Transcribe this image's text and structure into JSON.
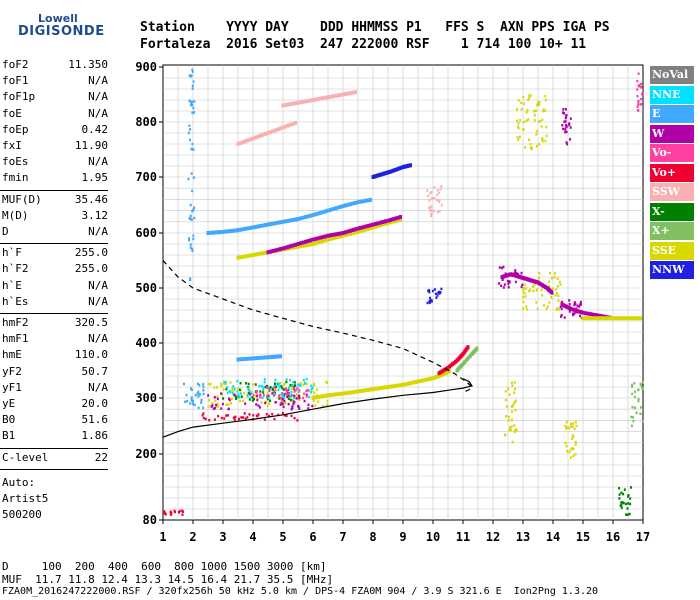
{
  "logo": {
    "line1": "Lowell",
    "line2": "DIGISONDE"
  },
  "header": {
    "row1": "Station    YYYY DAY    DDD HHMMSS P1   FFS S  AXN PPS IGA PS",
    "row2": "Fortaleza  2016 Set03  247 222000 RSF    1 714 100 10+ 11"
  },
  "params": {
    "group1": [
      {
        "label": "foF2",
        "value": "11.350"
      },
      {
        "label": "foF1",
        "value": "N/A"
      },
      {
        "label": "foF1p",
        "value": "N/A"
      },
      {
        "label": "foE",
        "value": "N/A"
      },
      {
        "label": "foEp",
        "value": "0.42"
      },
      {
        "label": "fxI",
        "value": "11.90"
      },
      {
        "label": "foEs",
        "value": "N/A"
      },
      {
        "label": "fmin",
        "value": "1.95"
      }
    ],
    "group2": [
      {
        "label": "MUF(D)",
        "value": "35.46"
      },
      {
        "label": "M(D)",
        "value": "3.12"
      },
      {
        "label": "D",
        "value": "N/A"
      }
    ],
    "group3": [
      {
        "label": "h`F",
        "value": "255.0"
      },
      {
        "label": "h`F2",
        "value": "255.0"
      },
      {
        "label": "h`E",
        "value": "N/A"
      },
      {
        "label": "h`Es",
        "value": "N/A"
      }
    ],
    "group4": [
      {
        "label": "hmF2",
        "value": "320.5"
      },
      {
        "label": "hmF1",
        "value": "N/A"
      },
      {
        "label": "hmE",
        "value": "110.0"
      },
      {
        "label": "yF2",
        "value": "50.7"
      },
      {
        "label": "yF1",
        "value": "N/A"
      },
      {
        "label": "yE",
        "value": "20.0"
      },
      {
        "label": "B0",
        "value": "51.6"
      },
      {
        "label": "B1",
        "value": "1.86"
      }
    ],
    "clevel": {
      "label": "C-level",
      "value": "22"
    },
    "auto": [
      "Auto:",
      "Artist5",
      "500200"
    ]
  },
  "legend": [
    {
      "label": "NoVal",
      "color": "#808080"
    },
    {
      "label": "NNE",
      "color": "#00e0ff"
    },
    {
      "label": "E",
      "color": "#40a8ff"
    },
    {
      "label": "W",
      "color": "#b000a8"
    },
    {
      "label": "Vo-",
      "color": "#ff40a0"
    },
    {
      "label": "Vo+",
      "color": "#f00030"
    },
    {
      "label": "SSW",
      "color": "#f8b0b0"
    },
    {
      "label": "X-",
      "color": "#008000"
    },
    {
      "label": "X+",
      "color": "#80c060"
    },
    {
      "label": "SSE",
      "color": "#d8d800"
    },
    {
      "label": "NNW",
      "color": "#2020e0"
    }
  ],
  "chart_data": {
    "type": "scatter",
    "xlim": [
      1,
      17
    ],
    "ylim": [
      80,
      900
    ],
    "xticks": [
      "1",
      "2",
      "3",
      "4",
      "5",
      "6",
      "7",
      "8",
      "9",
      "10",
      "11",
      "12",
      "13",
      "14",
      "15",
      "16",
      "17"
    ],
    "yticks": [
      {
        "v": 80,
        "label": "80"
      },
      {
        "v": 200,
        "label": "200"
      },
      {
        "v": 300,
        "label": "300"
      },
      {
        "v": 400,
        "label": "400"
      },
      {
        "v": 500,
        "label": "500"
      },
      {
        "v": 600,
        "label": "600"
      },
      {
        "v": 700,
        "label": "700"
      },
      {
        "v": 800,
        "label": "800"
      },
      {
        "v": 900,
        "label": "900"
      }
    ],
    "grid": true,
    "profile_dashed": [
      [
        1,
        550
      ],
      [
        1.5,
        520
      ],
      [
        2,
        500
      ],
      [
        3,
        480
      ],
      [
        4,
        460
      ],
      [
        5,
        445
      ],
      [
        6,
        430
      ],
      [
        7,
        418
      ],
      [
        8,
        405
      ],
      [
        9,
        390
      ],
      [
        10,
        365
      ],
      [
        10.7,
        345
      ],
      [
        11.1,
        330
      ],
      [
        11.3,
        320
      ],
      [
        11.2,
        315
      ],
      [
        11.0,
        310
      ]
    ],
    "trace_solid": [
      [
        1,
        230
      ],
      [
        1.5,
        240
      ],
      [
        2,
        248
      ],
      [
        3,
        255
      ],
      [
        4,
        262
      ],
      [
        5,
        270
      ],
      [
        6,
        280
      ],
      [
        7,
        290
      ],
      [
        8,
        298
      ],
      [
        9,
        305
      ],
      [
        10,
        310
      ],
      [
        10.6,
        315
      ],
      [
        11.0,
        318
      ],
      [
        11.3,
        322
      ],
      [
        11.2,
        330
      ],
      [
        11.0,
        335
      ]
    ],
    "traces": [
      {
        "color": "#d8d800",
        "points": [
          [
            6,
            300
          ],
          [
            6.5,
            305
          ],
          [
            7,
            308
          ],
          [
            7.5,
            312
          ],
          [
            8,
            316
          ],
          [
            8.5,
            320
          ],
          [
            9,
            324
          ],
          [
            9.5,
            330
          ],
          [
            10,
            336
          ],
          [
            10.3,
            342
          ],
          [
            10.6,
            350
          ]
        ]
      },
      {
        "color": "#f00030",
        "points": [
          [
            10.2,
            345
          ],
          [
            10.5,
            355
          ],
          [
            10.8,
            368
          ],
          [
            11,
            380
          ],
          [
            11.2,
            395
          ]
        ]
      },
      {
        "color": "#80c060",
        "points": [
          [
            10.8,
            350
          ],
          [
            11,
            362
          ],
          [
            11.3,
            380
          ],
          [
            11.5,
            392
          ]
        ]
      },
      {
        "color": "#40a8ff",
        "points": [
          [
            3.5,
            370
          ],
          [
            4,
            372
          ],
          [
            4.5,
            374
          ],
          [
            5,
            376
          ]
        ]
      },
      {
        "color": "#40a8ff",
        "points": [
          [
            2.5,
            600
          ],
          [
            3,
            602
          ],
          [
            3.5,
            605
          ],
          [
            4,
            610
          ],
          [
            4.5,
            615
          ],
          [
            5,
            620
          ],
          [
            5.5,
            625
          ],
          [
            6,
            632
          ],
          [
            6.5,
            640
          ],
          [
            7,
            648
          ],
          [
            7.5,
            655
          ],
          [
            8,
            660
          ]
        ]
      },
      {
        "color": "#d8d800",
        "points": [
          [
            3.5,
            555
          ],
          [
            4,
            560
          ],
          [
            4.5,
            565
          ],
          [
            5,
            570
          ],
          [
            5.5,
            575
          ],
          [
            6,
            580
          ],
          [
            6.5,
            588
          ],
          [
            7,
            595
          ],
          [
            7.5,
            602
          ],
          [
            8,
            610
          ],
          [
            8.5,
            618
          ],
          [
            9,
            625
          ]
        ]
      },
      {
        "color": "#b000a8",
        "points": [
          [
            4.5,
            565
          ],
          [
            5,
            572
          ],
          [
            5.5,
            580
          ],
          [
            6,
            588
          ],
          [
            6.5,
            595
          ],
          [
            7,
            600
          ],
          [
            7.5,
            608
          ],
          [
            8,
            615
          ],
          [
            8.5,
            622
          ],
          [
            9,
            630
          ]
        ]
      },
      {
        "color": "#f8b0b0",
        "points": [
          [
            5,
            830
          ],
          [
            5.5,
            835
          ],
          [
            6,
            840
          ],
          [
            6.5,
            845
          ],
          [
            7,
            850
          ],
          [
            7.5,
            855
          ]
        ]
      },
      {
        "color": "#f8b0b0",
        "points": [
          [
            3.5,
            760
          ],
          [
            4,
            770
          ],
          [
            4.5,
            780
          ],
          [
            5,
            790
          ],
          [
            5.5,
            800
          ]
        ]
      },
      {
        "color": "#2020e0",
        "points": [
          [
            8,
            700
          ],
          [
            8.3,
            705
          ],
          [
            8.6,
            710
          ],
          [
            9,
            718
          ],
          [
            9.3,
            722
          ]
        ]
      },
      {
        "color": "#b000a8",
        "points": [
          [
            12.3,
            520
          ],
          [
            12.6,
            525
          ],
          [
            12.9,
            520
          ],
          [
            13.2,
            515
          ],
          [
            13.5,
            510
          ],
          [
            13.8,
            500
          ],
          [
            14,
            490
          ]
        ]
      },
      {
        "color": "#b000a8",
        "points": [
          [
            14.3,
            470
          ],
          [
            14.6,
            462
          ],
          [
            15,
            455
          ],
          [
            15.5,
            450
          ],
          [
            16,
            445
          ]
        ]
      },
      {
        "color": "#d8d800",
        "points": [
          [
            15,
            445
          ],
          [
            15.5,
            445
          ],
          [
            16,
            445
          ],
          [
            16.5,
            445
          ],
          [
            17,
            445
          ]
        ]
      }
    ],
    "scatter_clusters": [
      {
        "color": "#40a8ff",
        "x": [
          1.7,
          2.4
        ],
        "y": [
          280,
          330
        ]
      },
      {
        "color": "#d8d800",
        "x": [
          2.5,
          6.5
        ],
        "y": [
          285,
          330
        ]
      },
      {
        "color": "#008000",
        "x": [
          3.0,
          5.5
        ],
        "y": [
          295,
          330
        ]
      },
      {
        "color": "#b000a8",
        "x": [
          2.5,
          6.0
        ],
        "y": [
          280,
          310
        ]
      },
      {
        "color": "#f00030",
        "x": [
          2.0,
          5.5
        ],
        "y": [
          260,
          275
        ]
      },
      {
        "color": "#00e0ff",
        "x": [
          3.0,
          6.0
        ],
        "y": [
          300,
          335
        ]
      },
      {
        "color": "#ff40a0",
        "x": [
          4.0,
          6.0
        ],
        "y": [
          300,
          320
        ]
      },
      {
        "color": "#f00030",
        "x": [
          1.0,
          1.7
        ],
        "y": [
          90,
          98
        ]
      },
      {
        "color": "#b000a8",
        "x": [
          12.2,
          13.0
        ],
        "y": [
          500,
          540
        ]
      },
      {
        "color": "#d8d800",
        "x": [
          13.0,
          14.3
        ],
        "y": [
          460,
          530
        ]
      },
      {
        "color": "#b000a8",
        "x": [
          14.2,
          15.0
        ],
        "y": [
          445,
          480
        ]
      },
      {
        "color": "#d8d800",
        "x": [
          12.8,
          13.8
        ],
        "y": [
          750,
          850
        ]
      },
      {
        "color": "#b000a8",
        "x": [
          14.3,
          14.6
        ],
        "y": [
          760,
          830
        ]
      },
      {
        "color": "#d8d800",
        "x": [
          12.4,
          12.8
        ],
        "y": [
          220,
          330
        ]
      },
      {
        "color": "#d8d800",
        "x": [
          14.4,
          14.8
        ],
        "y": [
          190,
          260
        ]
      },
      {
        "color": "#008000",
        "x": [
          16.2,
          16.6
        ],
        "y": [
          90,
          140
        ]
      },
      {
        "color": "#80c060",
        "x": [
          16.6,
          17.0
        ],
        "y": [
          250,
          330
        ]
      },
      {
        "color": "#ff40a0",
        "x": [
          16.8,
          17.0
        ],
        "y": [
          820,
          890
        ]
      },
      {
        "color": "#2020e0",
        "x": [
          9.8,
          10.3
        ],
        "y": [
          470,
          500
        ]
      },
      {
        "color": "#f8b0b0",
        "x": [
          9.8,
          10.3
        ],
        "y": [
          630,
          690
        ]
      },
      {
        "color": "#40a8ff",
        "x": [
          1.85,
          2.05
        ],
        "y": [
          500,
          900
        ]
      }
    ]
  },
  "footer": {
    "row1": "D     100  200  400  600  800 1000 1500 3000 [km]",
    "row2": "MUF  11.7 11.8 12.4 13.3 14.5 16.4 21.7 35.5 [MHz]",
    "row3": "FZA0M_2016247222000.RSF / 320fx256h 50 kHz 5.0 km / DPS-4 FZA0M 904 / 3.9 S 321.6 E  Ion2Png 1.3.20"
  }
}
